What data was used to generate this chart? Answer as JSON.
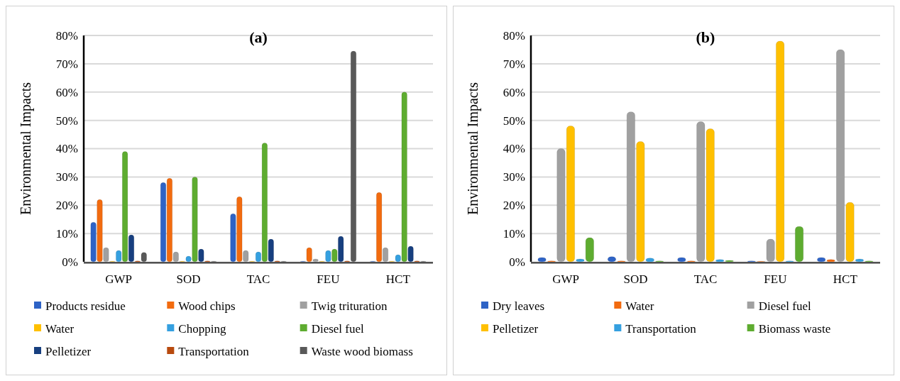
{
  "chart_data": [
    {
      "type": "bar",
      "title": "(a)",
      "ylabel": "Environmental Impacts",
      "categories": [
        "GWP",
        "SOD",
        "TAC",
        "FEU",
        "HCT"
      ],
      "series": [
        {
          "name": "Products residue",
          "color": "#2e63c6",
          "values": [
            14,
            28,
            17,
            0.2,
            0.2
          ]
        },
        {
          "name": "Wood chips",
          "color": "#f26b0f",
          "values": [
            22,
            29.5,
            23,
            5,
            24.5
          ]
        },
        {
          "name": "Twig trituration",
          "color": "#a0a0a0",
          "values": [
            5,
            3.5,
            4,
            1,
            5
          ]
        },
        {
          "name": "Water",
          "color": "#ffc000",
          "values": [
            0.2,
            0.2,
            0.2,
            0.2,
            0.2
          ]
        },
        {
          "name": "Chopping",
          "color": "#35a0e0",
          "values": [
            4,
            2,
            3.5,
            4,
            2.5
          ]
        },
        {
          "name": "Diesel fuel",
          "color": "#5eac30",
          "values": [
            39,
            30,
            42,
            4.5,
            60
          ]
        },
        {
          "name": "Pelletizer",
          "color": "#173f7f",
          "values": [
            9.5,
            4.5,
            8,
            9,
            5.5
          ]
        },
        {
          "name": "Transportation",
          "color": "#b84a0e",
          "values": [
            0.3,
            0.3,
            0.3,
            0.3,
            0.3
          ]
        },
        {
          "name": "Waste wood biomass",
          "color": "#595959",
          "values": [
            3.3,
            0.2,
            0.2,
            74.5,
            0.2
          ]
        }
      ],
      "ylim": [
        0,
        80
      ],
      "yticks": [
        {
          "value": 0,
          "label": "0%"
        },
        {
          "value": 10,
          "label": "10%"
        },
        {
          "value": 20,
          "label": "20%"
        },
        {
          "value": 30,
          "label": "30%"
        },
        {
          "value": 40,
          "label": "40%"
        },
        {
          "value": 50,
          "label": "50%"
        },
        {
          "value": 60,
          "label": "60%"
        },
        {
          "value": 70,
          "label": "70%"
        },
        {
          "value": 80,
          "label": "80%"
        }
      ],
      "grid": "y",
      "legend": "bottom"
    },
    {
      "type": "bar",
      "title": "(b)",
      "ylabel": "Environmental Impacts",
      "categories": [
        "GWP",
        "SOD",
        "TAC",
        "FEU",
        "HCT"
      ],
      "series": [
        {
          "name": "Dry leaves",
          "color": "#2e63c6",
          "values": [
            1.5,
            1.8,
            1.5,
            0.3,
            1.5
          ]
        },
        {
          "name": "Water",
          "color": "#f26b0f",
          "values": [
            0.3,
            0.3,
            0.3,
            0.2,
            0.8
          ]
        },
        {
          "name": "Diesel fuel",
          "color": "#a0a0a0",
          "values": [
            40,
            53,
            49.5,
            8,
            75
          ]
        },
        {
          "name": "Pelletizer",
          "color": "#ffc000",
          "values": [
            48,
            42.5,
            47,
            78,
            21
          ]
        },
        {
          "name": "Transportation",
          "color": "#35a0e0",
          "values": [
            1,
            1.3,
            0.8,
            0.3,
            1
          ]
        },
        {
          "name": "Biomass waste",
          "color": "#5eac30",
          "values": [
            8.5,
            0.3,
            0.5,
            12.5,
            0.3
          ]
        }
      ],
      "ylim": [
        0,
        80
      ],
      "yticks": [
        {
          "value": 0,
          "label": "0%"
        },
        {
          "value": 10,
          "label": "10%"
        },
        {
          "value": 20,
          "label": "20%"
        },
        {
          "value": 30,
          "label": "30%"
        },
        {
          "value": 40,
          "label": "40%"
        },
        {
          "value": 50,
          "label": "50%"
        },
        {
          "value": 60,
          "label": "60%"
        },
        {
          "value": 70,
          "label": "70%"
        },
        {
          "value": 80,
          "label": "80%"
        }
      ],
      "grid": "y",
      "legend": "bottom"
    }
  ]
}
